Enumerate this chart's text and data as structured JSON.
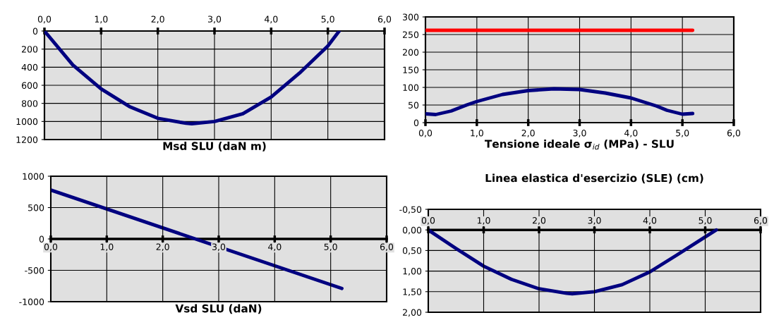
{
  "chart_data": [
    {
      "type": "line",
      "xlabel": "Msd SLU (daN m)",
      "x": [
        0,
        0.5,
        1.0,
        1.5,
        2.0,
        2.5,
        2.6,
        3.0,
        3.5,
        4.0,
        4.5,
        5.0,
        5.2
      ],
      "series": [
        {
          "color": "#000080",
          "values": [
            0,
            375,
            640,
            835,
            965,
            1020,
            1025,
            1000,
            915,
            730,
            465,
            165,
            0
          ]
        }
      ],
      "xlim": [
        0,
        6
      ],
      "xticks": [
        {
          "value": 0,
          "label": "0,0"
        },
        {
          "value": 1,
          "label": "1,0"
        },
        {
          "value": 2,
          "label": "2,0"
        },
        {
          "value": 3,
          "label": "3,0"
        },
        {
          "value": 4,
          "label": "4,0"
        },
        {
          "value": 5,
          "label": "5,0"
        },
        {
          "value": 6,
          "label": "6,0"
        }
      ],
      "ylim": [
        1200,
        0
      ],
      "yticks": [
        0,
        200,
        400,
        600,
        800,
        1000,
        1200
      ],
      "grid": true,
      "legend": false
    },
    {
      "type": "line",
      "xlabel": "Tensione ideale σ$_{id}$ (MPa) - SLU",
      "series": [
        {
          "color": "#000080",
          "x": [
            0,
            0.2,
            0.5,
            0.8,
            1.0,
            1.5,
            2.0,
            2.5,
            3.0,
            3.5,
            4.0,
            4.5,
            4.7,
            5.0,
            5.2
          ],
          "values": [
            25,
            23,
            33,
            50,
            60,
            80,
            91,
            96,
            94,
            84,
            70,
            47,
            35,
            24,
            26
          ]
        },
        {
          "color": "#ff0000",
          "x": [
            0,
            5.2
          ],
          "values": [
            262,
            262
          ]
        }
      ],
      "xlim": [
        0,
        6
      ],
      "xticks": [
        {
          "value": 0,
          "label": "0,0"
        },
        {
          "value": 1,
          "label": "1,0"
        },
        {
          "value": 2,
          "label": "2,0"
        },
        {
          "value": 3,
          "label": "3,0"
        },
        {
          "value": 4,
          "label": "4,0"
        },
        {
          "value": 5,
          "label": "5,0"
        },
        {
          "value": 6,
          "label": "6,0"
        }
      ],
      "ylim": [
        0,
        300
      ],
      "yticks": [
        0,
        50,
        100,
        150,
        200,
        250,
        300
      ],
      "grid": true,
      "legend": false
    },
    {
      "type": "line",
      "xlabel": "Vsd SLU (daN)",
      "x": [
        0,
        5.2
      ],
      "series": [
        {
          "color": "#000080",
          "values": [
            780,
            -790
          ]
        }
      ],
      "xlim": [
        0,
        6
      ],
      "xticks": [
        {
          "value": 0,
          "label": "0,0"
        },
        {
          "value": 1,
          "label": "1,0"
        },
        {
          "value": 2,
          "label": "2,0"
        },
        {
          "value": 3,
          "label": "3,0"
        },
        {
          "value": 4,
          "label": "4,0"
        },
        {
          "value": 5,
          "label": "5,0"
        },
        {
          "value": 6,
          "label": "6,0"
        }
      ],
      "ylim": [
        -1000,
        1000
      ],
      "yticks": [
        -1000,
        -500,
        0,
        500,
        1000
      ],
      "grid": true,
      "legend": false
    },
    {
      "type": "line",
      "title": "Linea elastica d'esercizio (SLE) (cm)",
      "x": [
        0,
        0.5,
        1.0,
        1.5,
        2.0,
        2.5,
        2.6,
        3.0,
        3.5,
        4.0,
        4.5,
        5.0,
        5.2
      ],
      "series": [
        {
          "color": "#000080",
          "values": [
            0,
            0.45,
            0.88,
            1.2,
            1.43,
            1.54,
            1.55,
            1.5,
            1.33,
            1.02,
            0.6,
            0.17,
            0
          ]
        }
      ],
      "xlim": [
        0,
        6
      ],
      "xticks": [
        {
          "value": 0,
          "label": "0,0"
        },
        {
          "value": 1,
          "label": "1,0"
        },
        {
          "value": 2,
          "label": "2,0"
        },
        {
          "value": 3,
          "label": "3,0"
        },
        {
          "value": 4,
          "label": "4,0"
        },
        {
          "value": 5,
          "label": "5,0"
        },
        {
          "value": 6,
          "label": "6,0"
        }
      ],
      "ylim": [
        2.0,
        -0.5
      ],
      "yticks": [
        {
          "value": -0.5,
          "label": "-0,50"
        },
        {
          "value": 0,
          "label": "0,00"
        },
        {
          "value": 0.5,
          "label": "0,50"
        },
        {
          "value": 1.0,
          "label": "1,00"
        },
        {
          "value": 1.5,
          "label": "1,50"
        },
        {
          "value": 2.0,
          "label": "2,00"
        }
      ],
      "grid": true,
      "legend": false
    }
  ]
}
